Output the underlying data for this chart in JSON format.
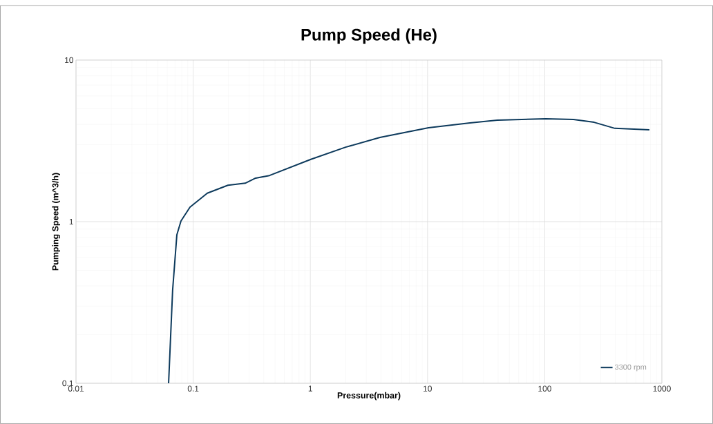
{
  "chart_data": {
    "type": "line",
    "title": "Pump Speed (He)",
    "xlabel": "Pressure(mbar)",
    "ylabel": "Pumping  Speed (m^3/h)",
    "log": "xy",
    "grid": true,
    "legend": "bottom right",
    "xlim": [
      0.01,
      1000
    ],
    "ylim": [
      0.1,
      10
    ],
    "xticks": [
      0.01,
      0.1,
      1,
      10,
      100,
      1000
    ],
    "yticks": [
      0.1,
      1,
      10
    ],
    "series": [
      {
        "name": "3300 rpm",
        "color": "#0d3a5c",
        "x": [
          0.0617,
          0.0668,
          0.0726,
          0.0787,
          0.0939,
          0.132,
          0.198,
          0.278,
          0.341,
          0.448,
          1.01,
          2.0,
          3.93,
          10.2,
          23,
          39.5,
          102,
          176,
          264,
          397,
          783
        ],
        "values": [
          0.1,
          0.378,
          0.83,
          1.01,
          1.23,
          1.5,
          1.68,
          1.73,
          1.86,
          1.93,
          2.43,
          2.89,
          3.32,
          3.81,
          4.08,
          4.25,
          4.33,
          4.29,
          4.12,
          3.78,
          3.7
        ]
      }
    ]
  }
}
